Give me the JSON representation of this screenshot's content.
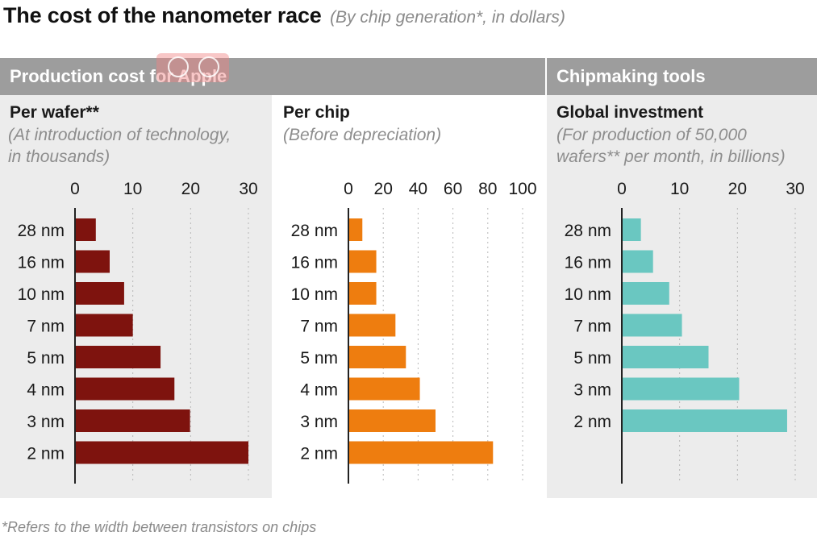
{
  "header": {
    "title": "The cost of the nanometer race",
    "subtitle": "(By chip generation*, in dollars)"
  },
  "bands": {
    "left": "Production cost for Apple",
    "right": "Chipmaking tools"
  },
  "footnote": "*Refers to the width between transistors on chips",
  "colors": {
    "wafer": "#7e130e",
    "chip": "#ee7d0f",
    "investment": "#6ac7c1",
    "band": "#9d9d9d",
    "panel_grey": "#ececec"
  },
  "chart_data": [
    {
      "type": "bar",
      "orientation": "horizontal",
      "title": "Per wafer**",
      "subtitle_lines": [
        "(At introduction of technology,",
        "in thousands)"
      ],
      "categories": [
        "28 nm",
        "16 nm",
        "10 nm",
        "7 nm",
        "5 nm",
        "4 nm",
        "3 nm",
        "2 nm"
      ],
      "values": [
        3.6,
        6.0,
        8.5,
        10.0,
        14.8,
        17.2,
        19.9,
        30.0
      ],
      "xlim": [
        0,
        30
      ],
      "ticks": [
        0,
        10,
        20,
        30
      ],
      "tick_labels": [
        "0",
        "10",
        "20",
        "30"
      ],
      "grid": true
    },
    {
      "type": "bar",
      "orientation": "horizontal",
      "title": "Per chip",
      "subtitle_lines": [
        "(Before depreciation)"
      ],
      "categories": [
        "28 nm",
        "16 nm",
        "10 nm",
        "7 nm",
        "5 nm",
        "4 nm",
        "3 nm",
        "2 nm"
      ],
      "values": [
        8,
        16,
        16,
        27,
        33,
        41,
        50,
        83
      ],
      "xlim": [
        0,
        100
      ],
      "ticks": [
        0,
        20,
        40,
        60,
        80,
        100
      ],
      "tick_labels": [
        "0",
        "20",
        "40",
        "60",
        "80",
        "100"
      ],
      "grid": true
    },
    {
      "type": "bar",
      "orientation": "horizontal",
      "title": "Global investment",
      "subtitle_lines": [
        "(For production of 50,000",
        "wafers** per month, in billions)"
      ],
      "categories": [
        "28 nm",
        "16 nm",
        "10 nm",
        "7 nm",
        "5 nm",
        "3 nm",
        "2 nm"
      ],
      "values": [
        3.3,
        5.4,
        8.2,
        10.4,
        15.0,
        20.3,
        28.6
      ],
      "xlim": [
        0,
        30
      ],
      "ticks": [
        0,
        10,
        20,
        30
      ],
      "tick_labels": [
        "0",
        "10",
        "20",
        "30"
      ],
      "grid": true
    }
  ]
}
